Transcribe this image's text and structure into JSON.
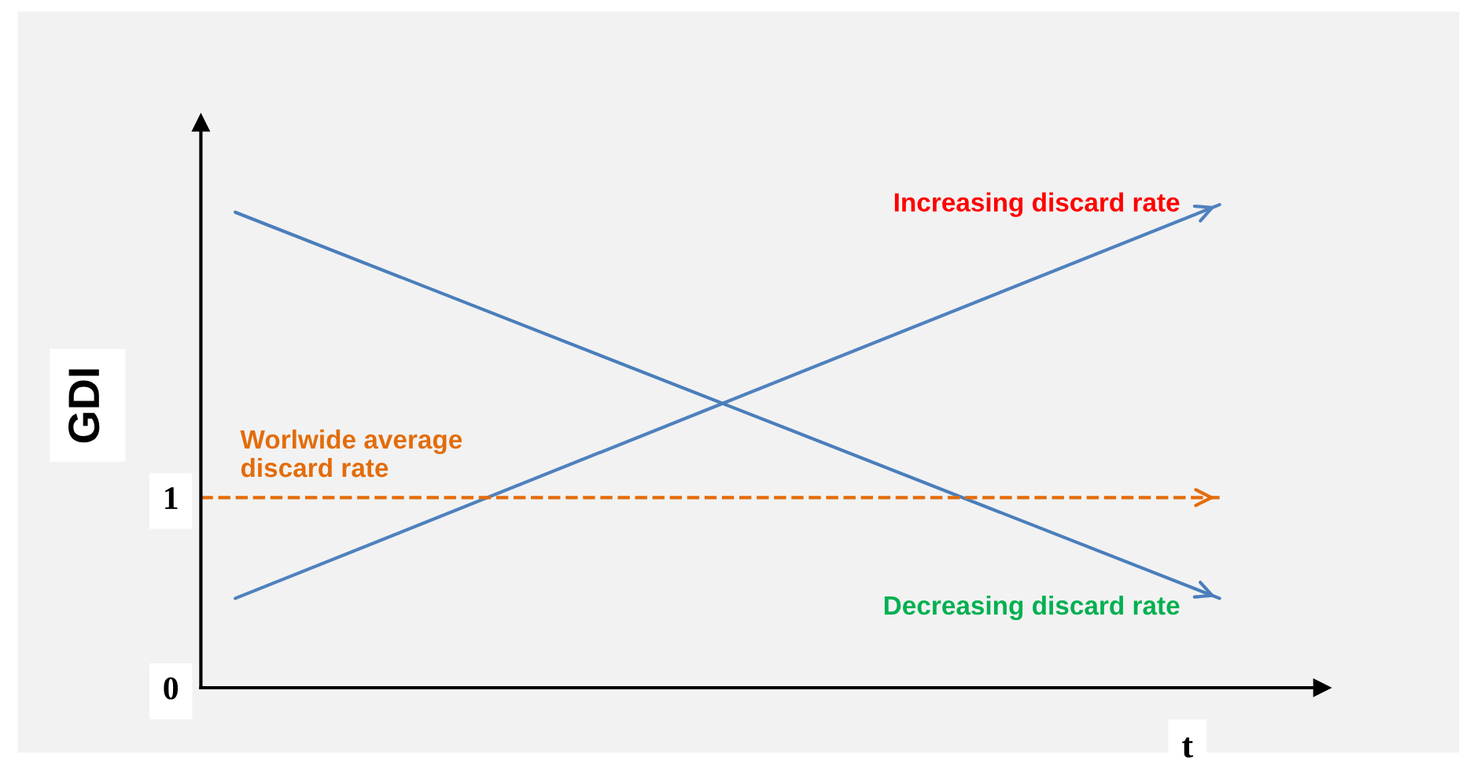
{
  "chart_data": {
    "type": "line",
    "xlabel": "t",
    "ylabel": "GDI",
    "categories": [
      null,
      null,
      null
    ],
    "series": [
      {
        "name": "Increasing discard rate",
        "color": "#4f81bd",
        "values": [
          0.47,
          1.505,
          2.54
        ]
      },
      {
        "name": "Decreasing discard rate",
        "color": "#4a7ebb",
        "values": [
          2.5,
          1.485,
          0.47
        ]
      }
    ],
    "ylim": [
      0,
      2.97
    ],
    "yticks": [
      0,
      1
    ],
    "grid": false,
    "legend": "right",
    "marker": "none",
    "line_style": "solid",
    "ref_lines": [
      {
        "axis": "y",
        "value": 1,
        "label": "Worlwide average\ndiscard rate",
        "color": "#e36c0a",
        "line_style": "dashed"
      }
    ]
  }
}
